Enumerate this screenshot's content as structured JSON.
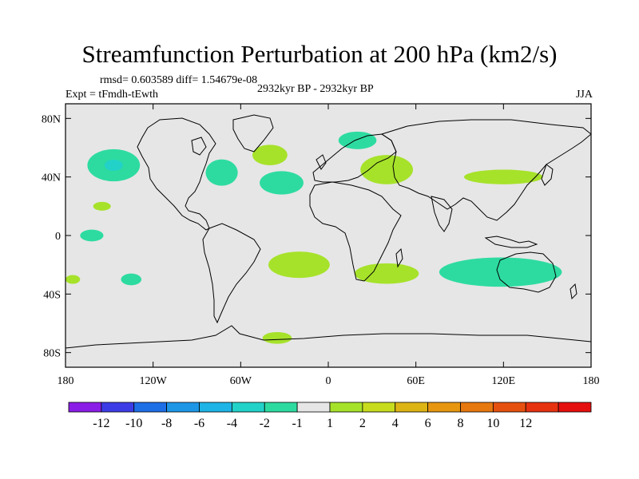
{
  "title": "Streamfunction Perturbation at 200 hPa (km2/s)",
  "stats": "rmsd= 0.603589 diff= 1.54679e-08",
  "experiment": "Expt = tFmdh-tEwth",
  "period": "2932kyr BP - 2932kyr BP",
  "season": "JJA",
  "map": {
    "background_color": "#e6e6e6",
    "lat_ticks": [
      {
        "lat": 80,
        "label": "80N"
      },
      {
        "lat": 40,
        "label": "40N"
      },
      {
        "lat": 0,
        "label": "0"
      },
      {
        "lat": -40,
        "label": "40S"
      },
      {
        "lat": -80,
        "label": "80S"
      }
    ],
    "lon_ticks": [
      {
        "lon": -180,
        "label": "180"
      },
      {
        "lon": -120,
        "label": "120W"
      },
      {
        "lon": -60,
        "label": "60W"
      },
      {
        "lon": 0,
        "label": "0"
      },
      {
        "lon": 60,
        "label": "60E"
      },
      {
        "lon": 120,
        "label": "120E"
      },
      {
        "lon": 180,
        "label": "180"
      }
    ],
    "anomalies": [
      {
        "name": "north-pacific-negative",
        "lon": -147,
        "lat": 48,
        "rlon": 18,
        "rlat": 11,
        "color": "#2ddba0",
        "core": "#22d2c8"
      },
      {
        "name": "eastern-north-america-negative",
        "lon": -73,
        "lat": 43,
        "rlon": 11,
        "rlat": 9,
        "color": "#2ddba0"
      },
      {
        "name": "central-north-atlantic-negative",
        "lon": -32,
        "lat": 36,
        "rlon": 15,
        "rlat": 8,
        "color": "#2ddba0"
      },
      {
        "name": "north-atlantic-positive",
        "lon": -40,
        "lat": 55,
        "rlon": 12,
        "rlat": 7,
        "color": "#a6e22a"
      },
      {
        "name": "scandinavia-negative",
        "lon": 20,
        "lat": 65,
        "rlon": 13,
        "rlat": 6,
        "color": "#2ddba0"
      },
      {
        "name": "europe-positive",
        "lon": 40,
        "lat": 45,
        "rlon": 18,
        "rlat": 10,
        "color": "#a6e22a"
      },
      {
        "name": "east-asia-positive",
        "lon": 120,
        "lat": 40,
        "rlon": 27,
        "rlat": 5,
        "color": "#a6e22a"
      },
      {
        "name": "hawaii-negative",
        "lon": -155,
        "lat": 20,
        "rlon": 6,
        "rlat": 3,
        "color": "#a6e22a"
      },
      {
        "name": "equatorial-pacific-negative",
        "lon": -162,
        "lat": 0,
        "rlon": 8,
        "rlat": 4,
        "color": "#2ddba0"
      },
      {
        "name": "south-pacific-negative-west",
        "lon": -175,
        "lat": -30,
        "rlon": 5,
        "rlat": 3,
        "color": "#a6e22a"
      },
      {
        "name": "south-pacific-negative",
        "lon": -135,
        "lat": -30,
        "rlon": 7,
        "rlat": 4,
        "color": "#2ddba0"
      },
      {
        "name": "south-atlantic-positive",
        "lon": -20,
        "lat": -20,
        "rlon": 21,
        "rlat": 9,
        "color": "#a6e22a"
      },
      {
        "name": "south-africa-positive",
        "lon": 40,
        "lat": -26,
        "rlon": 22,
        "rlat": 7,
        "color": "#a6e22a"
      },
      {
        "name": "indian-ocean-australia-negative",
        "lon": 118,
        "lat": -25,
        "rlon": 42,
        "rlat": 10,
        "color": "#2ddba0"
      },
      {
        "name": "southern-ocean-positive",
        "lon": -35,
        "lat": -70,
        "rlon": 10,
        "rlat": 4,
        "color": "#a6e22a"
      }
    ]
  },
  "colorbar": {
    "colors": [
      "#8a1ee6",
      "#3c3ce6",
      "#1e6ee6",
      "#1e96e6",
      "#1eb4e6",
      "#22d2c8",
      "#2ddba0",
      "#e6e6e6",
      "#a6e22a",
      "#c8dc1e",
      "#dcb414",
      "#e6960f",
      "#e6780f",
      "#e6500f",
      "#e6320f",
      "#e60f0f"
    ],
    "labels": [
      "-12",
      "-10",
      "-8",
      "-6",
      "-4",
      "-2",
      "-1",
      "1",
      "2",
      "4",
      "6",
      "8",
      "10",
      "12"
    ]
  }
}
